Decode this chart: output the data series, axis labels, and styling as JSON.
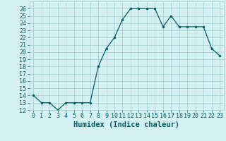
{
  "x": [
    0,
    1,
    2,
    3,
    4,
    5,
    6,
    7,
    8,
    9,
    10,
    11,
    12,
    13,
    14,
    15,
    16,
    17,
    18,
    19,
    20,
    21,
    22,
    23
  ],
  "y": [
    14,
    13,
    13,
    12,
    13,
    13,
    13,
    13,
    18,
    20.5,
    22,
    24.5,
    26,
    26,
    26,
    26,
    23.5,
    25,
    23.5,
    23.5,
    23.5,
    23.5,
    20.5,
    19.5
  ],
  "xlabel": "Humidex (Indice chaleur)",
  "xlim": [
    -0.5,
    23.5
  ],
  "ylim": [
    12,
    27
  ],
  "yticks": [
    12,
    13,
    14,
    15,
    16,
    17,
    18,
    19,
    20,
    21,
    22,
    23,
    24,
    25,
    26
  ],
  "xticks": [
    0,
    1,
    2,
    3,
    4,
    5,
    6,
    7,
    8,
    9,
    10,
    11,
    12,
    13,
    14,
    15,
    16,
    17,
    18,
    19,
    20,
    21,
    22,
    23
  ],
  "line_color": "#006060",
  "bg_color": "#d4f0f0",
  "grid_color": "#a0cece",
  "font_color": "#006060",
  "label_fontsize": 7.5,
  "tick_fontsize": 6.0
}
